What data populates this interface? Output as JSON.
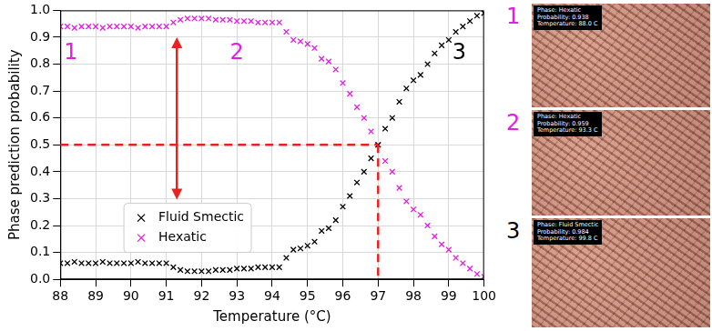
{
  "chart_data": {
    "type": "scatter",
    "x_label": "Temperature (°C)",
    "y_label": "Phase prediction probability",
    "x": [
      88,
      88.2,
      88.4,
      88.6,
      88.8,
      89,
      89.2,
      89.4,
      89.6,
      89.8,
      90,
      90.2,
      90.4,
      90.6,
      90.8,
      91,
      91.2,
      91.4,
      91.6,
      91.8,
      92,
      92.2,
      92.4,
      92.6,
      92.8,
      93,
      93.2,
      93.4,
      93.6,
      93.8,
      94,
      94.2,
      94.4,
      94.6,
      94.8,
      95,
      95.2,
      95.4,
      95.6,
      95.8,
      96,
      96.2,
      96.4,
      96.6,
      96.8,
      97,
      97.2,
      97.4,
      97.6,
      97.8,
      98,
      98.2,
      98.4,
      98.6,
      98.8,
      99,
      99.2,
      99.4,
      99.6,
      99.8,
      100
    ],
    "series": [
      {
        "name": "Fluid Smectic",
        "color": "#000000",
        "marker": "x",
        "values": [
          0.06,
          0.06,
          0.065,
          0.06,
          0.06,
          0.06,
          0.065,
          0.06,
          0.06,
          0.06,
          0.06,
          0.065,
          0.06,
          0.06,
          0.06,
          0.06,
          0.045,
          0.035,
          0.03,
          0.03,
          0.03,
          0.03,
          0.035,
          0.035,
          0.035,
          0.04,
          0.04,
          0.04,
          0.045,
          0.045,
          0.045,
          0.045,
          0.08,
          0.11,
          0.115,
          0.125,
          0.14,
          0.18,
          0.19,
          0.22,
          0.27,
          0.31,
          0.36,
          0.4,
          0.45,
          0.5,
          0.56,
          0.6,
          0.66,
          0.71,
          0.74,
          0.76,
          0.8,
          0.84,
          0.87,
          0.89,
          0.92,
          0.94,
          0.96,
          0.98,
          0.99
        ]
      },
      {
        "name": "Hexatic",
        "color": "#e020e0",
        "marker": "x",
        "values": [
          0.94,
          0.94,
          0.935,
          0.94,
          0.94,
          0.94,
          0.935,
          0.94,
          0.94,
          0.94,
          0.94,
          0.935,
          0.94,
          0.94,
          0.94,
          0.94,
          0.955,
          0.965,
          0.97,
          0.97,
          0.97,
          0.97,
          0.965,
          0.965,
          0.965,
          0.96,
          0.96,
          0.96,
          0.955,
          0.955,
          0.955,
          0.955,
          0.92,
          0.89,
          0.885,
          0.875,
          0.86,
          0.82,
          0.81,
          0.78,
          0.73,
          0.69,
          0.64,
          0.6,
          0.55,
          0.5,
          0.44,
          0.4,
          0.34,
          0.29,
          0.26,
          0.24,
          0.2,
          0.16,
          0.13,
          0.11,
          0.08,
          0.06,
          0.04,
          0.02,
          0.01
        ]
      }
    ],
    "xlim": [
      88,
      100
    ],
    "xticks": [
      88,
      89,
      90,
      91,
      92,
      93,
      94,
      95,
      96,
      97,
      98,
      99,
      100
    ],
    "ylim": [
      0,
      1
    ],
    "yticks": [
      {
        "value": 0,
        "label": "0.0"
      },
      {
        "value": 0.1,
        "label": "0.1"
      },
      {
        "value": 0.2,
        "label": "0.2"
      },
      {
        "value": 0.3,
        "label": "0.3"
      },
      {
        "value": 0.4,
        "label": "0.4"
      },
      {
        "value": 0.5,
        "label": "0.5"
      },
      {
        "value": 0.6,
        "label": "0.6"
      },
      {
        "value": 0.7,
        "label": "0.7"
      },
      {
        "value": 0.8,
        "label": "0.8"
      },
      {
        "value": 0.9,
        "label": "0.9"
      },
      {
        "value": 1,
        "label": "1.0"
      }
    ],
    "grid": true,
    "legend": "lower left",
    "crossing": {
      "x": 97,
      "y": 0.5,
      "color": "#e8231c"
    },
    "arrow": {
      "x": 91.3,
      "color": "#e8231c"
    },
    "annotations": [
      {
        "text": "1",
        "x": 88.3,
        "y": 0.84,
        "color": "#e020e0"
      },
      {
        "text": "2",
        "x": 93.0,
        "y": 0.84,
        "color": "#e020e0"
      },
      {
        "text": "3",
        "x": 99.3,
        "y": 0.84,
        "color": "#000000"
      }
    ],
    "panels": [
      {
        "label": "1",
        "color": "#e020e0",
        "text": [
          "Phase: Hexatic",
          "Probability: 0.938",
          "Temperature: 88.0 C"
        ]
      },
      {
        "label": "2",
        "color": "#e020e0",
        "text": [
          "Phase: Hexatic",
          "Probability: 0.959",
          "Temperature: 93.3 C"
        ]
      },
      {
        "label": "3",
        "color": "#000000",
        "text": [
          "Phase: Fluid Smectic",
          "Probability: 0.984",
          "Temperature: 99.8 C"
        ]
      }
    ]
  }
}
